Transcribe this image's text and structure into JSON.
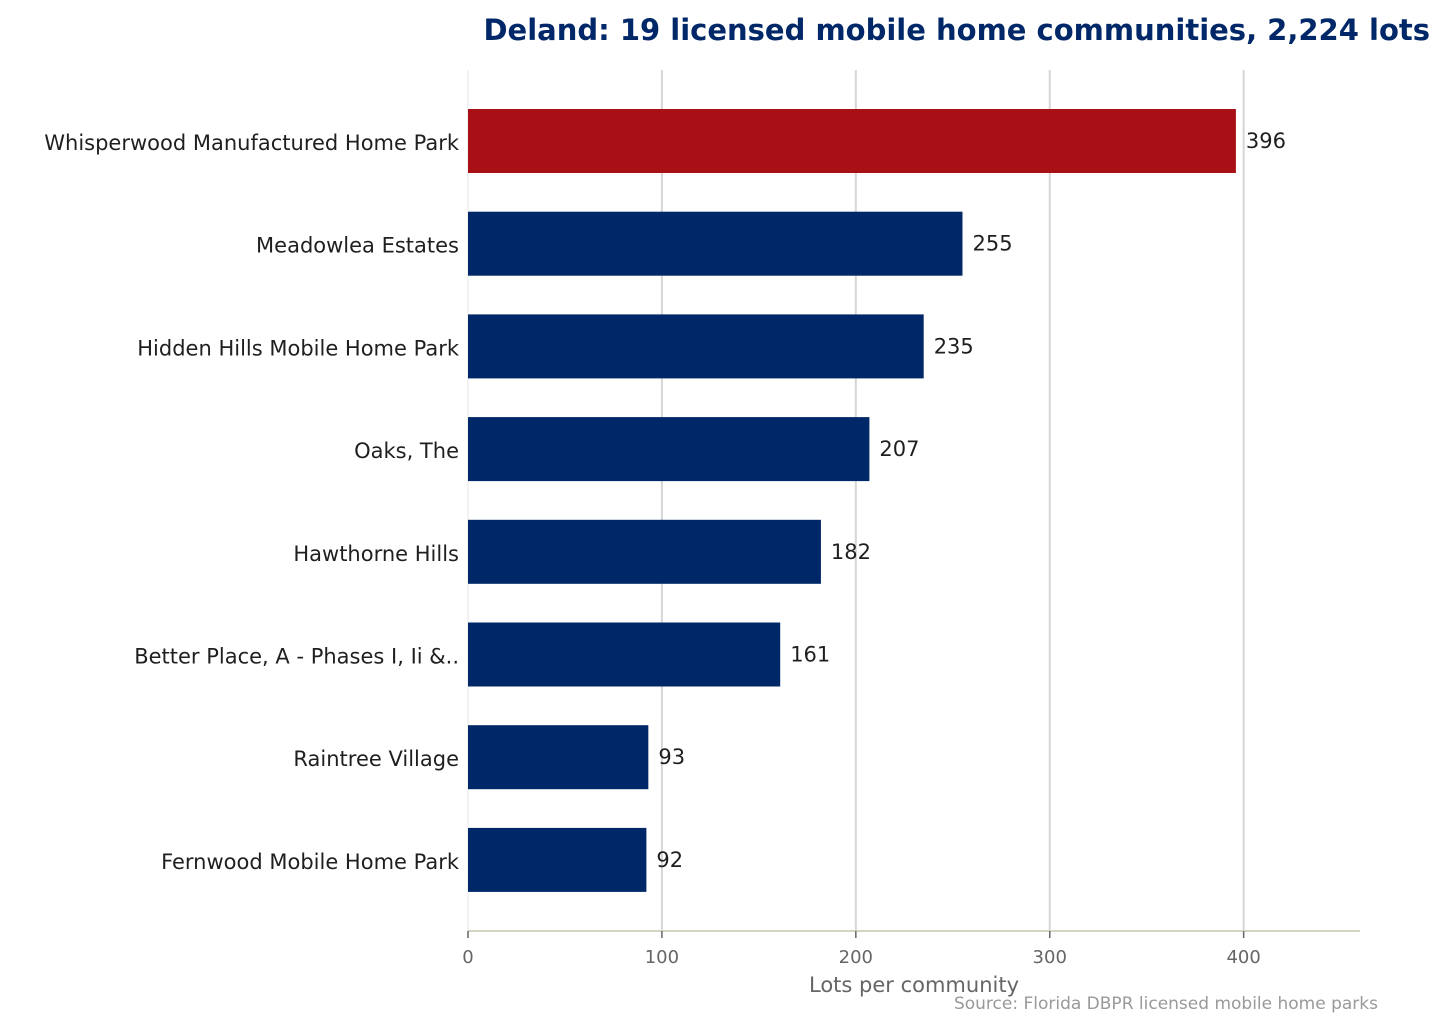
{
  "chart_data": {
    "type": "bar",
    "orientation": "horizontal",
    "title": "Deland: 19 licensed mobile home communities, 2,224 lots",
    "xlabel": "Lots per community",
    "ylabel": "",
    "source": "Source: Florida DBPR licensed mobile home parks",
    "categories": [
      "Whisperwood Manufactured Home Park",
      "Meadowlea Estates",
      "Hidden Hills Mobile Home Park",
      "Oaks, The",
      "Hawthorne Hills",
      "Better Place, A - Phases I, Ii &..",
      "Raintree Village",
      "Fernwood Mobile Home Park"
    ],
    "values": [
      396,
      255,
      235,
      207,
      182,
      161,
      93,
      92
    ],
    "value_labels": [
      "396",
      "255",
      "235",
      "207",
      "182",
      "161",
      "93",
      "92"
    ],
    "highlight_index": 0,
    "colors": {
      "highlight": "#a81015",
      "default": "#002868"
    },
    "xlim": [
      0,
      460
    ],
    "xticks": [
      0,
      100,
      200,
      300,
      400
    ],
    "xtick_labels": [
      "0",
      "100",
      "200",
      "300",
      "400"
    ],
    "grid": "vertical"
  }
}
